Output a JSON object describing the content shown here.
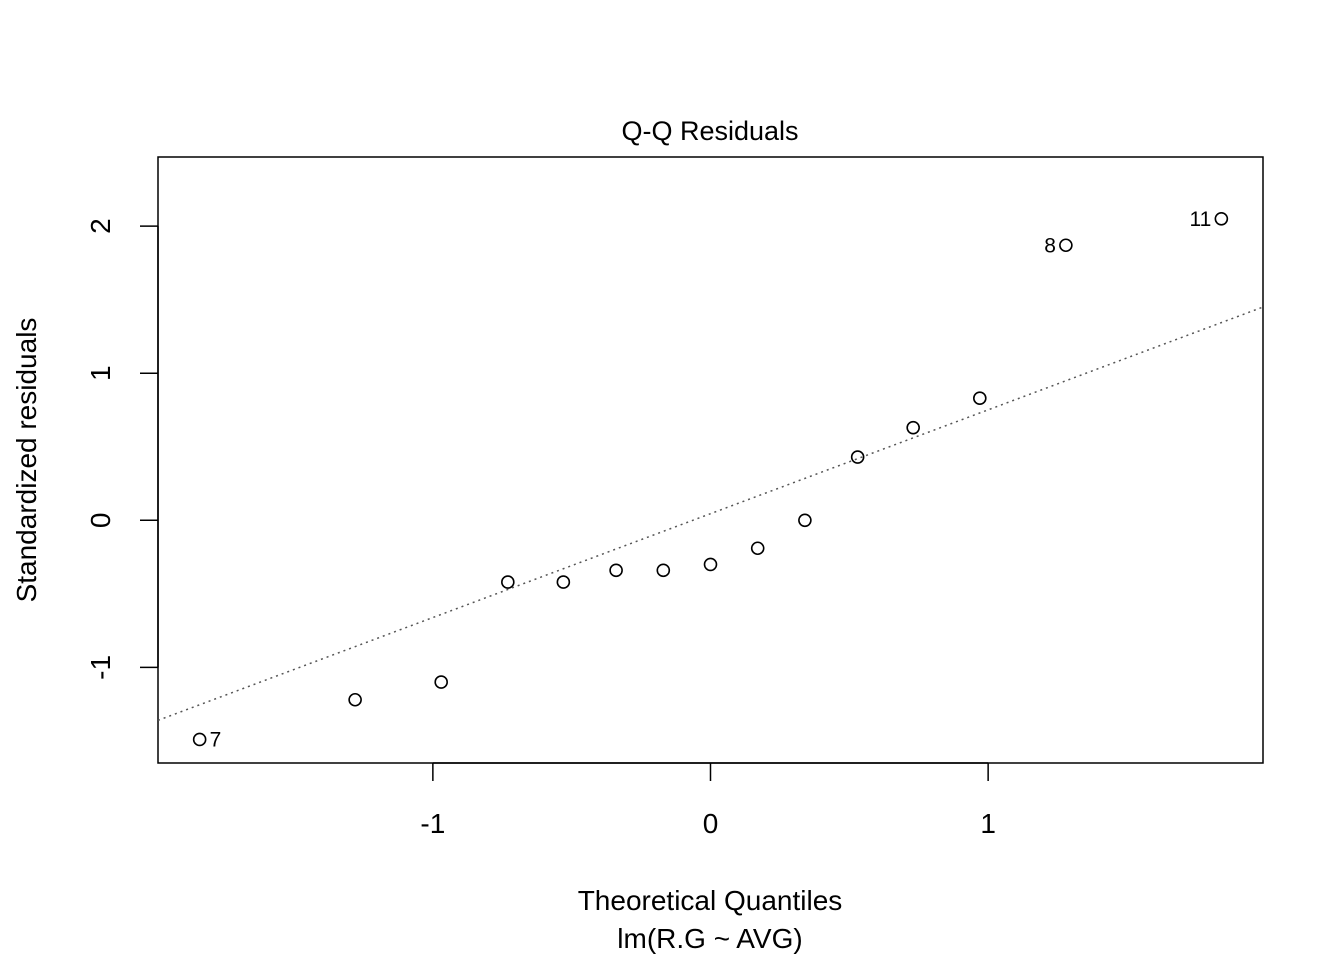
{
  "chart_data": {
    "type": "scatter",
    "title": "Q-Q Residuals",
    "xlabel": "Theoretical Quantiles",
    "subtitle": "lm(R.G ~ AVG)",
    "ylabel": "Standardized residuals",
    "xlim": [
      -1.99,
      1.99
    ],
    "ylim": [
      -1.65,
      2.47
    ],
    "x_ticks": [
      -1,
      0,
      1
    ],
    "y_ticks": [
      -1,
      0,
      1,
      2
    ],
    "grid": false,
    "points": [
      {
        "x": -1.84,
        "y": -1.49,
        "label": "7"
      },
      {
        "x": -1.28,
        "y": -1.22,
        "label": ""
      },
      {
        "x": -0.97,
        "y": -1.1,
        "label": ""
      },
      {
        "x": -0.73,
        "y": -0.42,
        "label": ""
      },
      {
        "x": -0.53,
        "y": -0.42,
        "label": ""
      },
      {
        "x": -0.34,
        "y": -0.34,
        "label": ""
      },
      {
        "x": -0.17,
        "y": -0.34,
        "label": ""
      },
      {
        "x": 0.0,
        "y": -0.3,
        "label": ""
      },
      {
        "x": 0.17,
        "y": -0.19,
        "label": ""
      },
      {
        "x": 0.34,
        "y": 0.0,
        "label": ""
      },
      {
        "x": 0.53,
        "y": 0.43,
        "label": ""
      },
      {
        "x": 0.73,
        "y": 0.63,
        "label": ""
      },
      {
        "x": 0.97,
        "y": 0.83,
        "label": ""
      },
      {
        "x": 1.28,
        "y": 1.87,
        "label": "8"
      },
      {
        "x": 1.84,
        "y": 2.05,
        "label": "11"
      }
    ],
    "reference_line": {
      "style": "dotted",
      "p1": {
        "x": -1.99,
        "y": -1.36
      },
      "p2": {
        "x": 1.99,
        "y": 1.45
      }
    }
  }
}
